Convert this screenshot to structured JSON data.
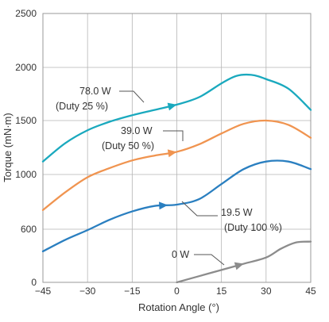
{
  "chart_data": {
    "type": "line",
    "xlabel": "Rotation Angle (°)",
    "ylabel": "Torque (mN·m)",
    "xlim": [
      -45,
      45
    ],
    "ylim": [
      0,
      2500
    ],
    "x_ticks": [
      "−45",
      "−30",
      "−15",
      "0",
      "15",
      "30",
      "45"
    ],
    "y_ticks": [
      "0",
      "600",
      "1000",
      "1500",
      "2000",
      "2500"
    ],
    "grid": true,
    "series": [
      {
        "name": "78.0 W (Duty 25 %)",
        "label_line1": "78.0 W",
        "label_line2": "(Duty 25 %)",
        "color": "#1aa9be",
        "x": [
          -45,
          -37.5,
          -30,
          -22.5,
          -15,
          -7.5,
          0,
          7.5,
          15,
          20,
          25,
          30,
          37.5,
          45
        ],
        "y": [
          1120,
          1290,
          1410,
          1490,
          1550,
          1600,
          1650,
          1720,
          1850,
          1920,
          1930,
          1890,
          1800,
          1600
        ]
      },
      {
        "name": "39.0 W (Duty 50 %)",
        "label_line1": "39.0 W",
        "label_line2": "(Duty 50 %)",
        "color": "#f09450",
        "x": [
          -45,
          -37.5,
          -30,
          -22.5,
          -15,
          -7.5,
          0,
          7.5,
          15,
          22.5,
          30,
          37.5,
          45
        ],
        "y": [
          740,
          870,
          980,
          1060,
          1130,
          1175,
          1210,
          1280,
          1380,
          1470,
          1500,
          1460,
          1340
        ]
      },
      {
        "name": "19.5 W (Duty 100 %)",
        "label_line1": "19.5 W",
        "label_line2": "(Duty 100 %)",
        "color": "#2a7fc0",
        "x": [
          -45,
          -37.5,
          -30,
          -22.5,
          -15,
          -7.5,
          0,
          7.5,
          15,
          22.5,
          30,
          37.5,
          45
        ],
        "y": [
          350,
          480,
          590,
          670,
          730,
          770,
          780,
          820,
          930,
          1050,
          1120,
          1120,
          1050
        ]
      },
      {
        "name": "0 W",
        "label_line1": "0 W",
        "label_line2": "",
        "color": "#8c8c8c",
        "x": [
          0,
          7.5,
          15,
          22.5,
          30,
          35,
          40,
          45
        ],
        "y": [
          0,
          70,
          140,
          210,
          280,
          380,
          450,
          460
        ]
      }
    ]
  }
}
